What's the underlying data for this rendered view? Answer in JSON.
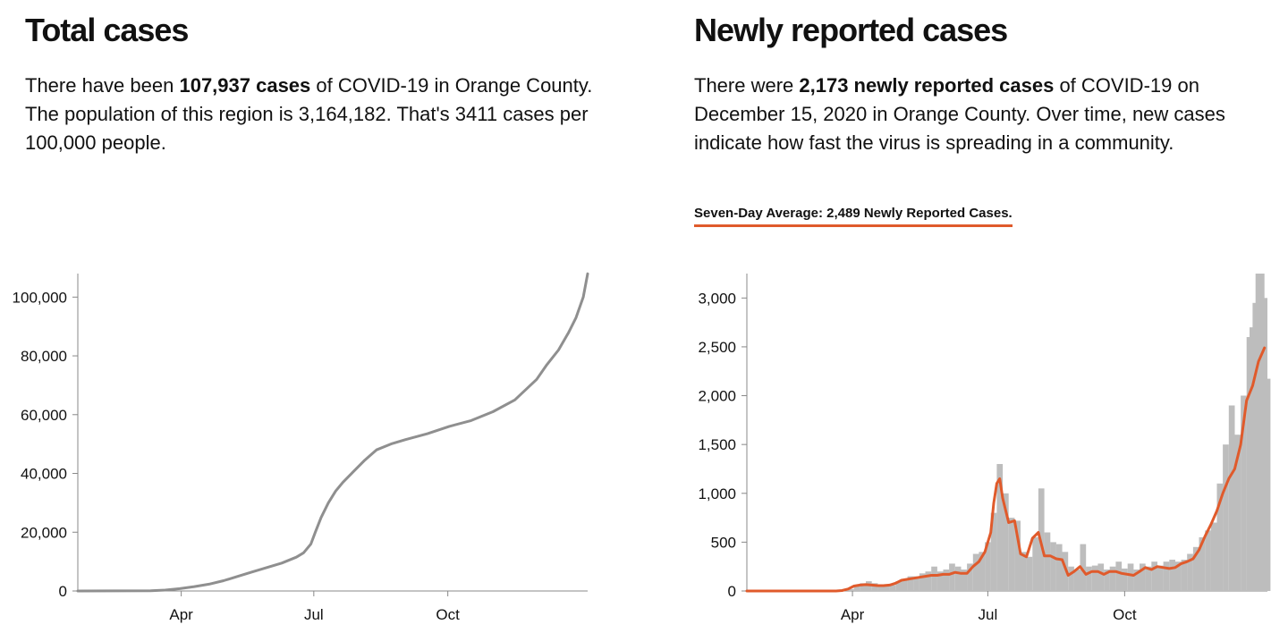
{
  "colors": {
    "total_line": "#8f8f8f",
    "daily_bars": "#bdbdbd",
    "average_line": "#e05a2b",
    "axis": "#888888"
  },
  "total": {
    "title": "Total cases",
    "desc_pre": "There have been ",
    "desc_bold": "107,937 cases",
    "desc_post": " of COVID-19 in Orange County. The population of this region is 3,164,182. That's 3411 cases per 100,000 people."
  },
  "newly": {
    "title": "Newly reported cases",
    "desc_pre": "There were ",
    "desc_bold": "2,173 newly reported cases",
    "desc_post": " of COVID-19 on December 15, 2020 in Orange County. Over time, new cases indicate how fast the virus is spreading in a community.",
    "average_label": "Seven-Day Average: 2,489 Newly Reported Cases."
  },
  "chart_data": [
    {
      "type": "line",
      "title": "Total cases",
      "xlabel": "",
      "ylabel": "",
      "x_domain_days": [
        0,
        350
      ],
      "ylim": [
        0,
        108000
      ],
      "yticks": [
        0,
        20000,
        40000,
        60000,
        80000,
        100000
      ],
      "ytick_labels": [
        "0",
        "20,000",
        "40,000",
        "60,000",
        "80,000",
        "100,000"
      ],
      "xticks": [
        71,
        162,
        254
      ],
      "xtick_labels": [
        "Apr",
        "Jul",
        "Oct"
      ],
      "series": [
        {
          "name": "Total cases",
          "x": [
            0,
            50,
            60,
            70,
            80,
            90,
            100,
            110,
            120,
            130,
            140,
            150,
            155,
            160,
            163,
            167,
            172,
            177,
            182,
            190,
            197,
            205,
            215,
            225,
            240,
            255,
            270,
            285,
            300,
            315,
            322,
            330,
            337,
            342,
            347,
            350
          ],
          "y": [
            0,
            100,
            300,
            800,
            1500,
            2300,
            3500,
            5000,
            6500,
            8000,
            9500,
            11500,
            13000,
            16000,
            20000,
            25000,
            30000,
            34000,
            37000,
            41000,
            44500,
            48000,
            50000,
            51500,
            53500,
            56000,
            58000,
            61000,
            65000,
            72000,
            77000,
            82000,
            88000,
            93000,
            100000,
            107937
          ]
        }
      ]
    },
    {
      "type": "bar",
      "title": "Newly reported cases",
      "xlabel": "",
      "ylabel": "",
      "x_domain_days": [
        0,
        350
      ],
      "ylim": [
        0,
        3250
      ],
      "yticks": [
        0,
        500,
        1000,
        1500,
        2000,
        2500,
        3000
      ],
      "ytick_labels": [
        "0",
        "500",
        "1,000",
        "1,500",
        "2,000",
        "2,500",
        "3,000"
      ],
      "xticks": [
        71,
        162,
        254
      ],
      "xtick_labels": [
        "Apr",
        "Jul",
        "Oct"
      ],
      "bar_width_days": 4,
      "series": [
        {
          "name": "Newly reported cases",
          "kind": "bar",
          "x": [
            0,
            4,
            8,
            12,
            16,
            20,
            24,
            28,
            32,
            36,
            40,
            44,
            48,
            52,
            56,
            60,
            64,
            68,
            72,
            76,
            80,
            84,
            88,
            92,
            96,
            100,
            104,
            108,
            112,
            116,
            120,
            124,
            128,
            132,
            136,
            140,
            144,
            148,
            152,
            156,
            160,
            164,
            168,
            172,
            176,
            180,
            184,
            188,
            192,
            196,
            200,
            204,
            208,
            212,
            216,
            220,
            224,
            228,
            232,
            236,
            240,
            244,
            248,
            252,
            256,
            260,
            264,
            268,
            272,
            276,
            280,
            284,
            288,
            292,
            296,
            300,
            304,
            308,
            312,
            316,
            320,
            324,
            328,
            332,
            336,
            338,
            340,
            342,
            344,
            346,
            348
          ],
          "y": [
            0,
            0,
            0,
            0,
            0,
            0,
            0,
            0,
            0,
            0,
            0,
            0,
            0,
            0,
            0,
            0,
            5,
            20,
            50,
            80,
            100,
            80,
            60,
            70,
            60,
            100,
            120,
            150,
            150,
            180,
            200,
            250,
            200,
            220,
            280,
            250,
            220,
            280,
            380,
            400,
            500,
            800,
            1300,
            1000,
            750,
            720,
            400,
            350,
            550,
            1050,
            600,
            500,
            480,
            400,
            250,
            220,
            480,
            250,
            260,
            280,
            220,
            250,
            300,
            230,
            280,
            220,
            280,
            250,
            300,
            260,
            300,
            320,
            300,
            320,
            380,
            450,
            550,
            620,
            700,
            1100,
            1500,
            1900,
            1600,
            2000,
            2600,
            2700,
            2950,
            3250,
            3250,
            3000,
            2173
          ]
        },
        {
          "name": "Seven-day average",
          "kind": "line",
          "x": [
            0,
            60,
            64,
            68,
            72,
            76,
            80,
            84,
            88,
            92,
            96,
            100,
            104,
            108,
            112,
            116,
            120,
            124,
            128,
            132,
            136,
            140,
            144,
            148,
            152,
            156,
            160,
            164,
            166,
            168,
            170,
            172,
            176,
            180,
            184,
            188,
            192,
            196,
            200,
            204,
            208,
            212,
            216,
            220,
            224,
            228,
            232,
            236,
            240,
            244,
            248,
            252,
            256,
            260,
            264,
            268,
            272,
            276,
            280,
            284,
            288,
            292,
            296,
            300,
            304,
            308,
            312,
            316,
            320,
            324,
            328,
            332,
            336,
            340,
            344,
            348
          ],
          "y": [
            0,
            0,
            5,
            20,
            50,
            60,
            65,
            60,
            55,
            55,
            60,
            80,
            110,
            120,
            130,
            140,
            150,
            160,
            160,
            170,
            170,
            190,
            180,
            180,
            250,
            300,
            400,
            600,
            900,
            1100,
            1150,
            950,
            700,
            720,
            380,
            350,
            540,
            600,
            360,
            360,
            330,
            320,
            160,
            200,
            250,
            170,
            200,
            200,
            170,
            200,
            200,
            180,
            170,
            160,
            200,
            240,
            220,
            250,
            240,
            230,
            240,
            280,
            300,
            330,
            420,
            560,
            680,
            820,
            1000,
            1150,
            1250,
            1500,
            1950,
            2100,
            2350,
            2489
          ]
        }
      ]
    }
  ]
}
